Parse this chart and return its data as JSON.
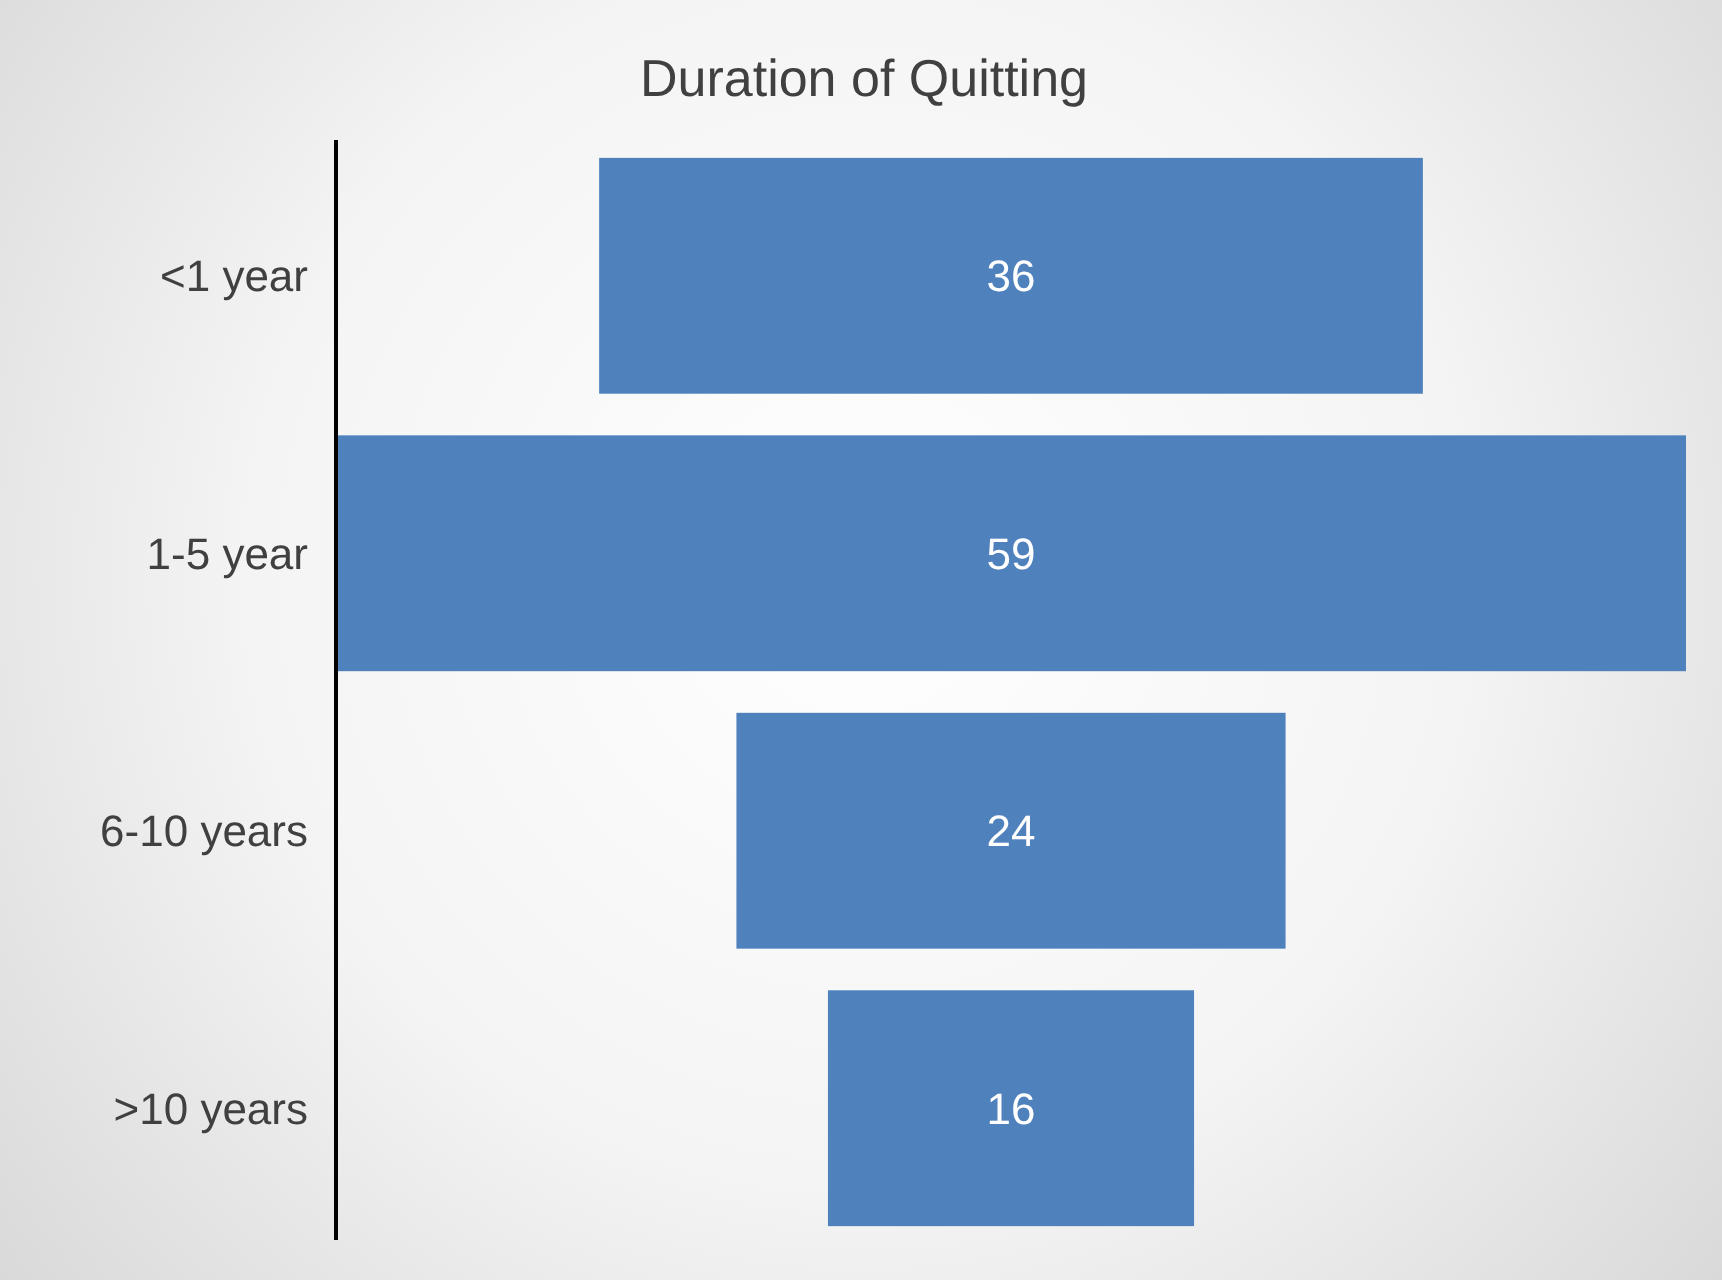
{
  "chart_data": {
    "type": "other",
    "title": "Duration of Quitting",
    "categories": [
      "<1 year",
      "1-5 year",
      "6-10 years",
      ">10 years"
    ],
    "values": [
      36,
      59,
      24,
      16
    ],
    "color": "#4f81bd",
    "data_labels": true
  }
}
